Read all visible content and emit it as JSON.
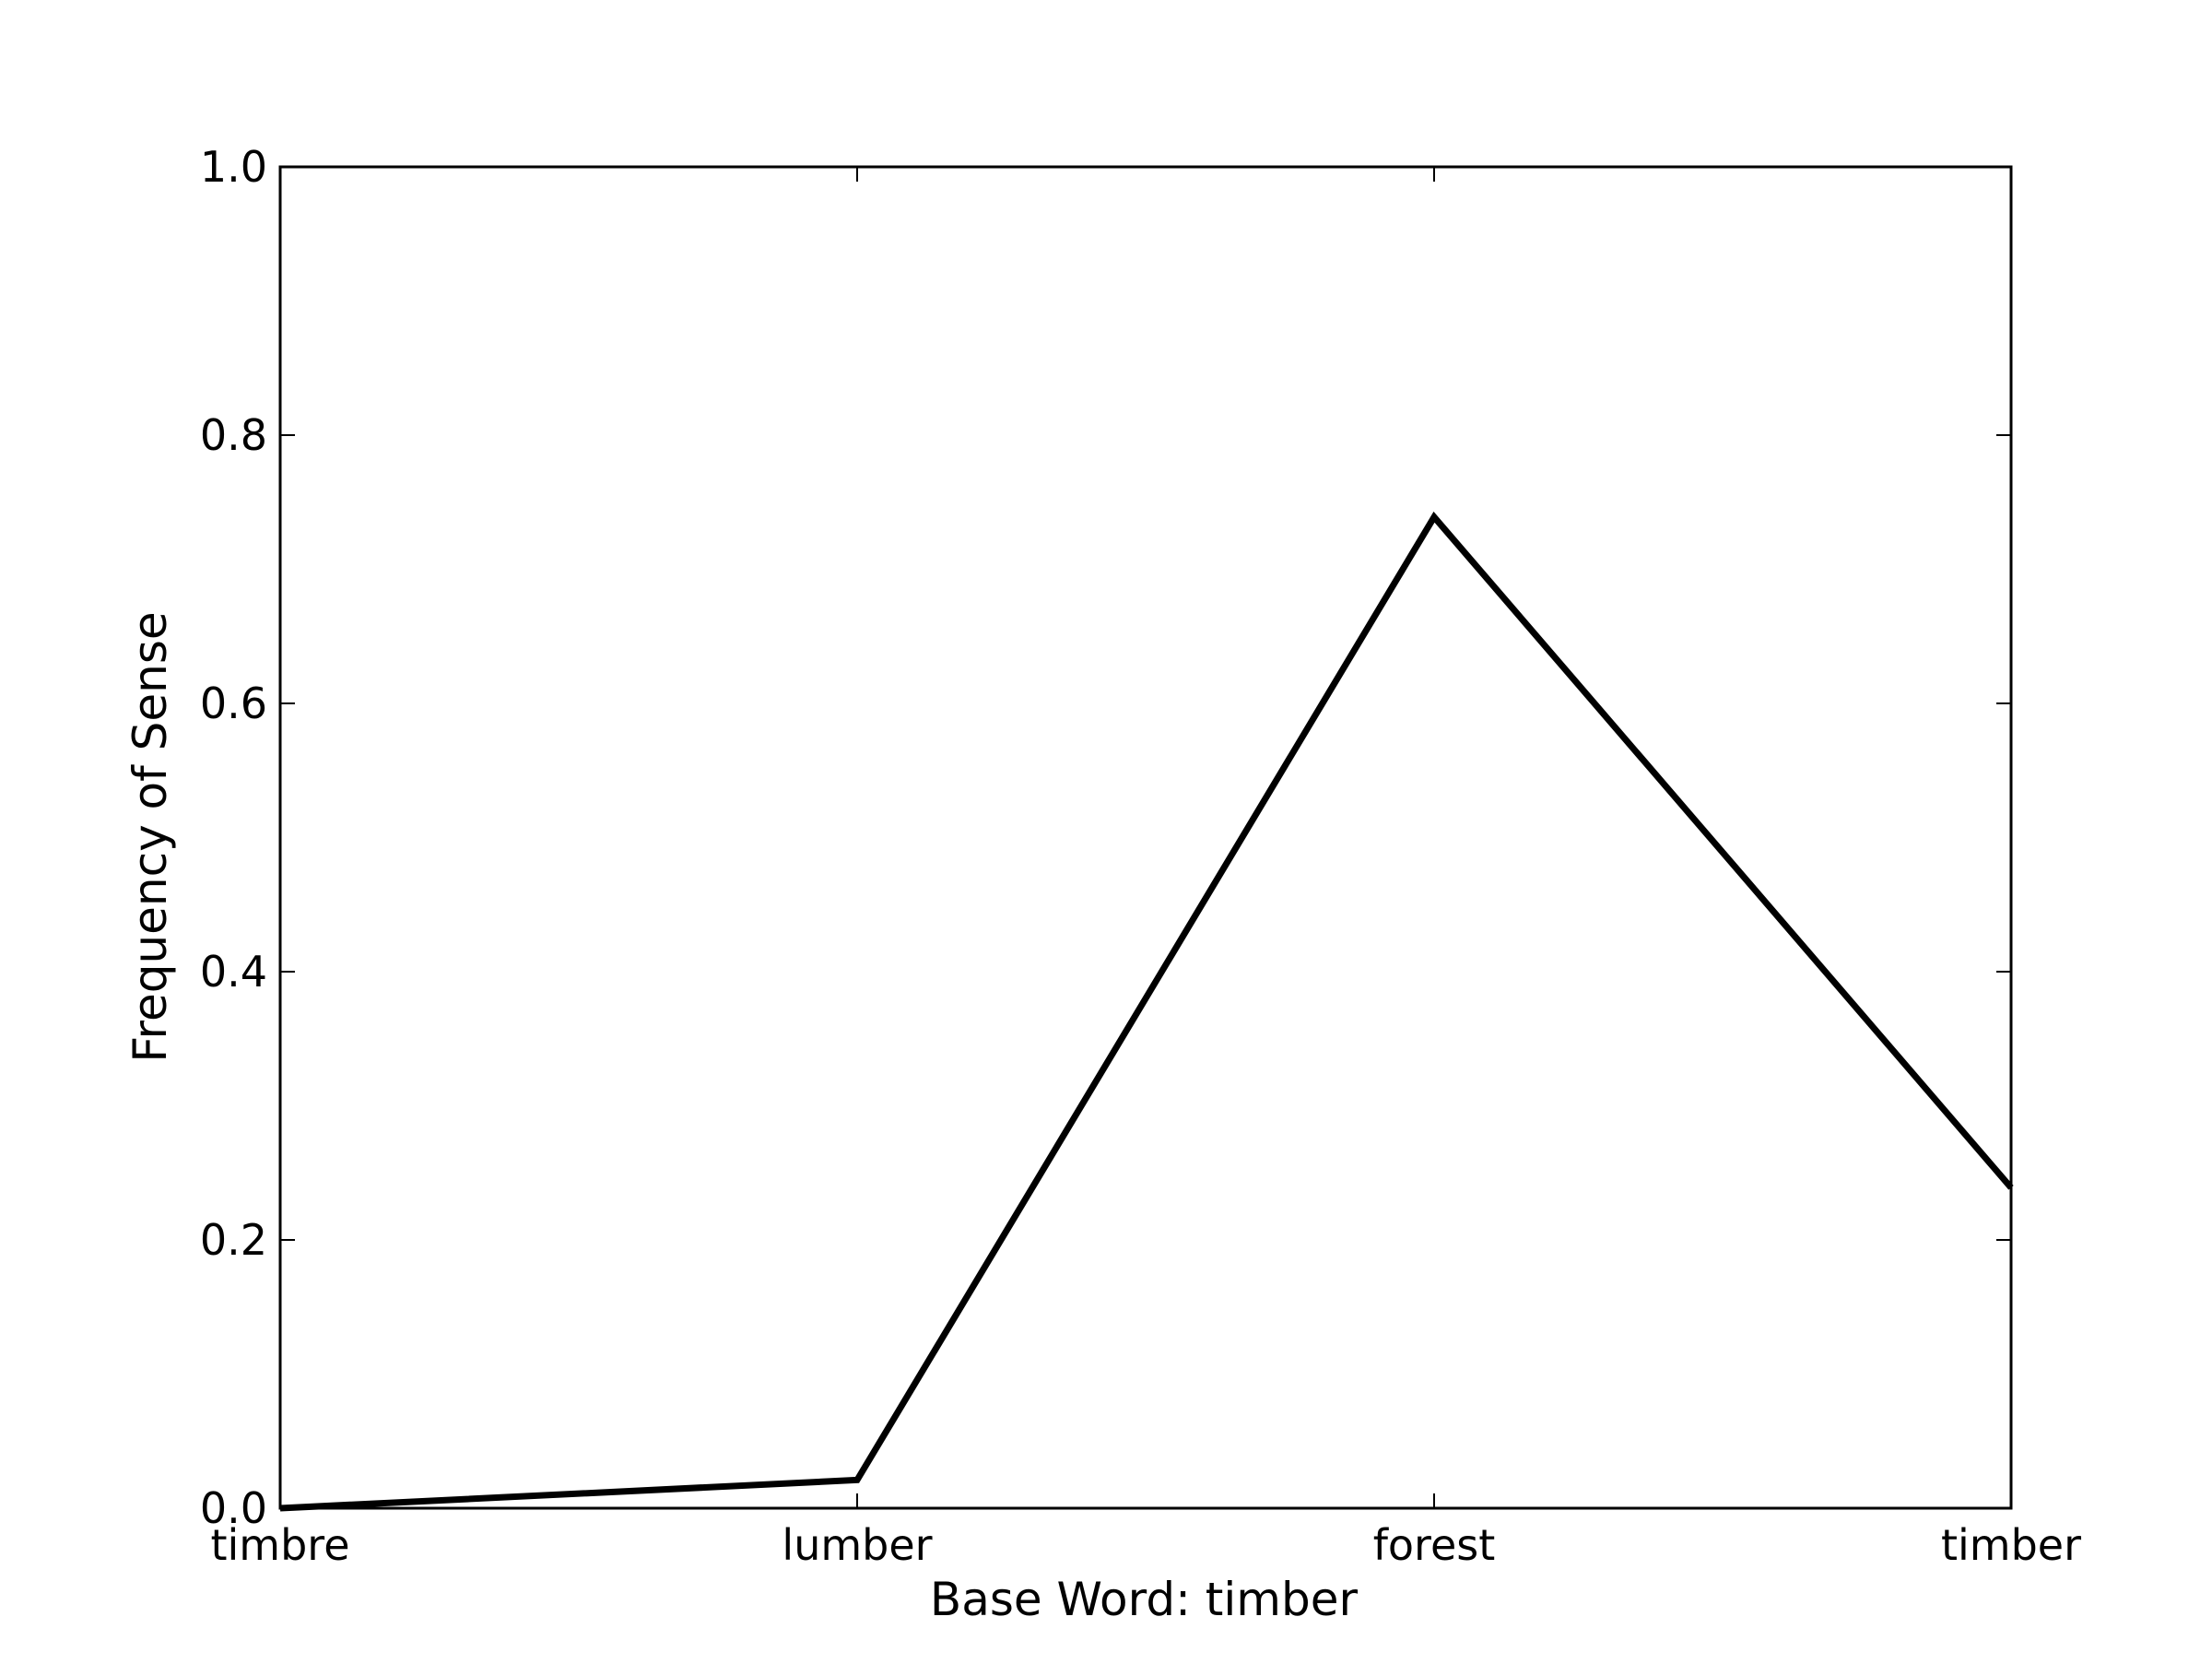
{
  "chart_data": {
    "type": "line",
    "title": "",
    "xlabel": "Base Word: timber",
    "ylabel": "Frequency of Sense",
    "categories": [
      "timbre",
      "lumber",
      "forest",
      "timber"
    ],
    "series": [
      {
        "values": [
          0.0,
          0.021,
          0.739,
          0.239
        ],
        "color": "#000000"
      }
    ],
    "ylim": [
      0.0,
      1.0
    ],
    "yticks": [
      "0.0",
      "0.2",
      "0.4",
      "0.6",
      "0.8",
      "1.0"
    ],
    "grid": false,
    "legend": "none"
  }
}
